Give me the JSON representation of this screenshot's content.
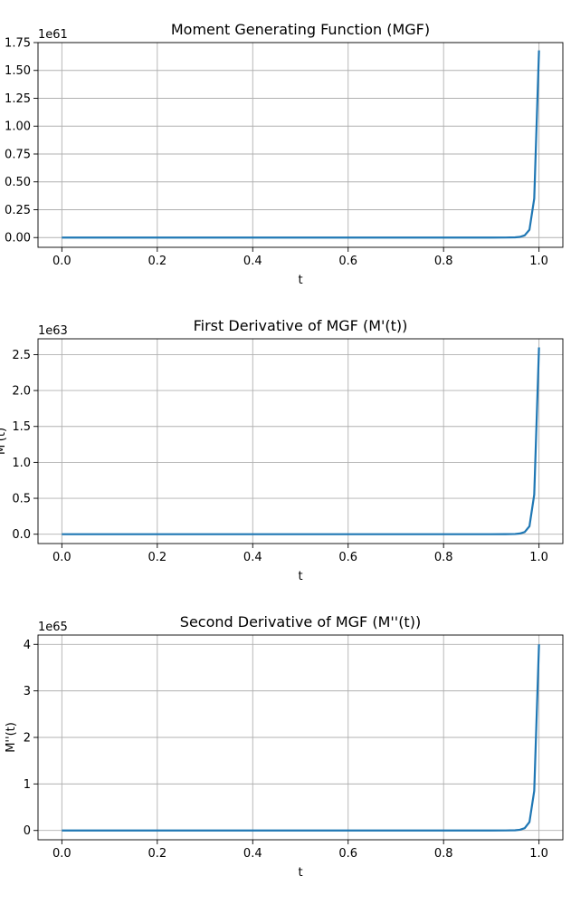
{
  "chart_data": [
    {
      "type": "line",
      "title": "Moment Generating Function (MGF)",
      "xlabel": "t",
      "ylabel": "",
      "y_offset_label": "1e61",
      "xlim": [
        -0.05,
        1.05
      ],
      "ylim": [
        -0.0875,
        1.75
      ],
      "xticks": [
        "0.0",
        "0.2",
        "0.4",
        "0.6",
        "0.8",
        "1.0"
      ],
      "yticks": [
        "0.00",
        "0.25",
        "0.50",
        "0.75",
        "1.00",
        "1.25",
        "1.50",
        "1.75"
      ],
      "grid": true,
      "color": "#1f77b4",
      "series": [
        {
          "x": [
            0.0,
            0.05,
            0.1,
            0.15,
            0.2,
            0.25,
            0.3,
            0.35,
            0.4,
            0.45,
            0.5,
            0.55,
            0.6,
            0.65,
            0.7,
            0.75,
            0.8,
            0.85,
            0.9,
            0.93,
            0.95,
            0.96,
            0.97,
            0.98,
            0.99,
            1.0
          ],
          "y": [
            0,
            0,
            0,
            0,
            0,
            0,
            0,
            0,
            0,
            0,
            0,
            0,
            0,
            0,
            0,
            0,
            0,
            0,
            0,
            0.0003,
            0.002,
            0.006,
            0.02,
            0.07,
            0.35,
            1.68
          ]
        }
      ]
    },
    {
      "type": "line",
      "title": "First Derivative of MGF (M'(t))",
      "xlabel": "t",
      "ylabel": "M'(t)",
      "y_offset_label": "1e63",
      "xlim": [
        -0.05,
        1.05
      ],
      "ylim": [
        -0.13,
        2.72
      ],
      "xticks": [
        "0.0",
        "0.2",
        "0.4",
        "0.6",
        "0.8",
        "1.0"
      ],
      "yticks": [
        "0.0",
        "0.5",
        "1.0",
        "1.5",
        "2.0",
        "2.5"
      ],
      "grid": true,
      "color": "#1f77b4",
      "series": [
        {
          "x": [
            0.0,
            0.05,
            0.1,
            0.15,
            0.2,
            0.25,
            0.3,
            0.35,
            0.4,
            0.45,
            0.5,
            0.55,
            0.6,
            0.65,
            0.7,
            0.75,
            0.8,
            0.85,
            0.9,
            0.93,
            0.95,
            0.96,
            0.97,
            0.98,
            0.99,
            1.0
          ],
          "y": [
            0,
            0,
            0,
            0,
            0,
            0,
            0,
            0,
            0,
            0,
            0,
            0,
            0,
            0,
            0,
            0,
            0,
            0,
            0,
            0.0005,
            0.003,
            0.01,
            0.03,
            0.11,
            0.55,
            2.6
          ]
        }
      ]
    },
    {
      "type": "line",
      "title": "Second Derivative of MGF (M''(t))",
      "xlabel": "t",
      "ylabel": "M''(t)",
      "y_offset_label": "1e65",
      "xlim": [
        -0.05,
        1.05
      ],
      "ylim": [
        -0.2,
        4.2
      ],
      "xticks": [
        "0.0",
        "0.2",
        "0.4",
        "0.6",
        "0.8",
        "1.0"
      ],
      "yticks": [
        "0",
        "1",
        "2",
        "3",
        "4"
      ],
      "grid": true,
      "color": "#1f77b4",
      "series": [
        {
          "x": [
            0.0,
            0.05,
            0.1,
            0.15,
            0.2,
            0.25,
            0.3,
            0.35,
            0.4,
            0.45,
            0.5,
            0.55,
            0.6,
            0.65,
            0.7,
            0.75,
            0.8,
            0.85,
            0.9,
            0.93,
            0.95,
            0.96,
            0.97,
            0.98,
            0.99,
            1.0
          ],
          "y": [
            0,
            0,
            0,
            0,
            0,
            0,
            0,
            0,
            0,
            0,
            0,
            0,
            0,
            0,
            0,
            0,
            0,
            0,
            0,
            0.0008,
            0.005,
            0.015,
            0.05,
            0.18,
            0.85,
            4.0
          ]
        }
      ]
    }
  ]
}
